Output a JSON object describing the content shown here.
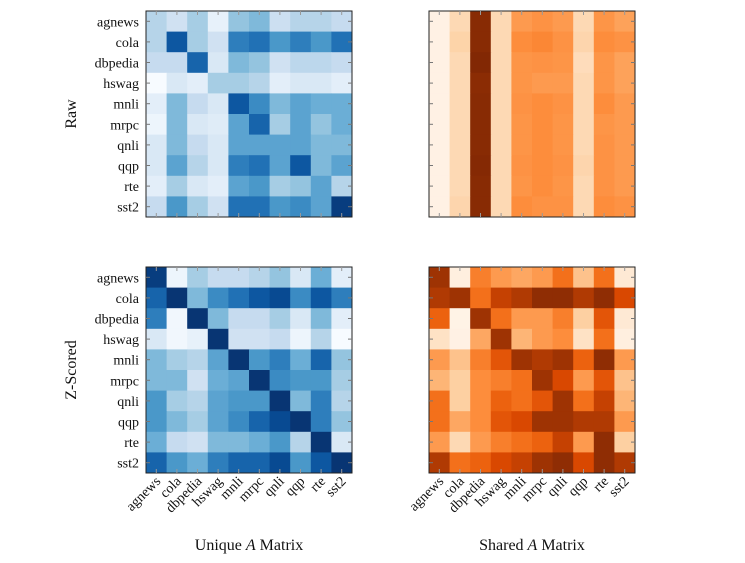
{
  "chart_data": [
    {
      "type": "heatmap",
      "row_label": "Raw",
      "col_title": "Unique A Matrix",
      "colormap": "Blues",
      "grid": false,
      "rows": [
        "agnews",
        "cola",
        "dbpedia",
        "hswag",
        "mnli",
        "mrpc",
        "qnli",
        "qqp",
        "rte",
        "sst2"
      ],
      "cols": [
        "agnews",
        "cola",
        "dbpedia",
        "hswag",
        "mnli",
        "mrpc",
        "qnli",
        "qqp",
        "rte",
        "sst2"
      ],
      "values": [
        [
          0.3,
          0.2,
          0.35,
          0.08,
          0.4,
          0.45,
          0.22,
          0.3,
          0.3,
          0.25
        ],
        [
          0.3,
          0.85,
          0.35,
          0.2,
          0.7,
          0.75,
          0.6,
          0.7,
          0.6,
          0.75
        ],
        [
          0.25,
          0.25,
          0.8,
          0.15,
          0.45,
          0.4,
          0.2,
          0.28,
          0.28,
          0.25
        ],
        [
          0,
          0.15,
          0.1,
          0.35,
          0.35,
          0.3,
          0.1,
          0.15,
          0.15,
          0.1
        ],
        [
          0.1,
          0.45,
          0.25,
          0.15,
          0.85,
          0.65,
          0.45,
          0.55,
          0.5,
          0.5
        ],
        [
          0.05,
          0.45,
          0.15,
          0.12,
          0.55,
          0.8,
          0.35,
          0.55,
          0.4,
          0.5
        ],
        [
          0.15,
          0.45,
          0.25,
          0.15,
          0.55,
          0.55,
          0.55,
          0.55,
          0.45,
          0.45
        ],
        [
          0.15,
          0.55,
          0.3,
          0.15,
          0.7,
          0.75,
          0.55,
          0.85,
          0.45,
          0.55
        ],
        [
          0.1,
          0.35,
          0.15,
          0.1,
          0.55,
          0.6,
          0.35,
          0.4,
          0.55,
          0.3
        ],
        [
          0.25,
          0.6,
          0.35,
          0.2,
          0.75,
          0.75,
          0.6,
          0.65,
          0.55,
          0.95
        ]
      ]
    },
    {
      "type": "heatmap",
      "row_label": "Raw",
      "col_title": "Shared A Matrix",
      "colormap": "Oranges",
      "grid": false,
      "rows": [
        "agnews",
        "cola",
        "dbpedia",
        "hswag",
        "mnli",
        "mrpc",
        "qnli",
        "qqp",
        "rte",
        "sst2"
      ],
      "cols": [
        "agnews",
        "cola",
        "dbpedia",
        "hswag",
        "mnli",
        "mrpc",
        "qnli",
        "qqp",
        "rte",
        "sst2"
      ],
      "values": [
        [
          0.03,
          0.2,
          0.97,
          0.2,
          0.45,
          0.48,
          0.45,
          0.2,
          0.47,
          0.42
        ],
        [
          0.03,
          0.23,
          0.97,
          0.2,
          0.5,
          0.52,
          0.48,
          0.22,
          0.5,
          0.48
        ],
        [
          0.03,
          0.2,
          0.99,
          0.2,
          0.47,
          0.48,
          0.47,
          0.18,
          0.47,
          0.42
        ],
        [
          0.03,
          0.2,
          0.96,
          0.2,
          0.47,
          0.45,
          0.45,
          0.2,
          0.47,
          0.42
        ],
        [
          0.03,
          0.2,
          0.97,
          0.2,
          0.48,
          0.5,
          0.48,
          0.2,
          0.5,
          0.45
        ],
        [
          0.03,
          0.2,
          0.97,
          0.2,
          0.47,
          0.5,
          0.47,
          0.2,
          0.47,
          0.45
        ],
        [
          0.03,
          0.2,
          0.97,
          0.2,
          0.47,
          0.5,
          0.47,
          0.2,
          0.48,
          0.45
        ],
        [
          0.03,
          0.2,
          0.98,
          0.2,
          0.48,
          0.5,
          0.48,
          0.22,
          0.48,
          0.45
        ],
        [
          0.03,
          0.2,
          0.97,
          0.2,
          0.47,
          0.5,
          0.47,
          0.2,
          0.48,
          0.45
        ],
        [
          0.03,
          0.22,
          0.97,
          0.2,
          0.5,
          0.48,
          0.48,
          0.2,
          0.5,
          0.48
        ]
      ]
    },
    {
      "type": "heatmap",
      "row_label": "Z-Scored",
      "col_title": "Unique A Matrix",
      "colormap": "Blues",
      "grid": false,
      "rows": [
        "agnews",
        "cola",
        "dbpedia",
        "hswag",
        "mnli",
        "mrpc",
        "qnli",
        "qqp",
        "rte",
        "sst2"
      ],
      "cols": [
        "agnews",
        "cola",
        "dbpedia",
        "hswag",
        "mnli",
        "mrpc",
        "qnli",
        "qqp",
        "rte",
        "sst2"
      ],
      "values": [
        [
          0.95,
          0.05,
          0.35,
          0.25,
          0.25,
          0.3,
          0.4,
          0.15,
          0.5,
          0.1
        ],
        [
          0.8,
          0.98,
          0.45,
          0.65,
          0.75,
          0.85,
          0.9,
          0.65,
          0.85,
          0.7
        ],
        [
          0.7,
          0.03,
          0.98,
          0.45,
          0.25,
          0.25,
          0.35,
          0.15,
          0.45,
          0.1
        ],
        [
          0.15,
          0.03,
          0.08,
          0.98,
          0.2,
          0.2,
          0.25,
          0.05,
          0.3,
          0
        ],
        [
          0.45,
          0.35,
          0.3,
          0.55,
          0.98,
          0.6,
          0.7,
          0.5,
          0.8,
          0.4
        ],
        [
          0.45,
          0.45,
          0.2,
          0.5,
          0.55,
          0.98,
          0.65,
          0.6,
          0.6,
          0.35
        ],
        [
          0.6,
          0.35,
          0.3,
          0.55,
          0.6,
          0.6,
          0.98,
          0.45,
          0.7,
          0.3
        ],
        [
          0.6,
          0.45,
          0.35,
          0.55,
          0.65,
          0.8,
          0.9,
          0.98,
          0.7,
          0.4
        ],
        [
          0.5,
          0.25,
          0.2,
          0.45,
          0.45,
          0.5,
          0.6,
          0.3,
          0.98,
          0.15
        ],
        [
          0.8,
          0.6,
          0.5,
          0.7,
          0.8,
          0.8,
          0.9,
          0.6,
          0.85,
          0.98
        ]
      ]
    },
    {
      "type": "heatmap",
      "row_label": "Z-Scored",
      "col_title": "Shared A Matrix",
      "colormap": "Oranges",
      "grid": false,
      "rows": [
        "agnews",
        "cola",
        "dbpedia",
        "hswag",
        "mnli",
        "mrpc",
        "qnli",
        "qqp",
        "rte",
        "sst2"
      ],
      "cols": [
        "agnews",
        "cola",
        "dbpedia",
        "hswag",
        "mnli",
        "mrpc",
        "qnli",
        "qqp",
        "rte",
        "sst2"
      ],
      "values": [
        [
          0.9,
          0.05,
          0.55,
          0.45,
          0.4,
          0.45,
          0.6,
          0.3,
          0.6,
          0.1
        ],
        [
          0.85,
          0.9,
          0.6,
          0.8,
          0.85,
          0.95,
          0.95,
          0.85,
          0.95,
          0.75
        ],
        [
          0.65,
          0.02,
          0.9,
          0.6,
          0.45,
          0.45,
          0.55,
          0.25,
          0.7,
          0.1
        ],
        [
          0.15,
          0.03,
          0.4,
          0.9,
          0.35,
          0.45,
          0.5,
          0.15,
          0.6,
          0.05
        ],
        [
          0.45,
          0.3,
          0.55,
          0.7,
          0.9,
          0.85,
          0.9,
          0.65,
          0.95,
          0.45
        ],
        [
          0.35,
          0.25,
          0.5,
          0.55,
          0.6,
          0.9,
          0.75,
          0.45,
          0.7,
          0.3
        ],
        [
          0.6,
          0.25,
          0.5,
          0.65,
          0.6,
          0.7,
          0.9,
          0.6,
          0.8,
          0.35
        ],
        [
          0.6,
          0.4,
          0.5,
          0.7,
          0.75,
          0.9,
          0.9,
          0.85,
          0.85,
          0.45
        ],
        [
          0.45,
          0.2,
          0.45,
          0.55,
          0.6,
          0.65,
          0.8,
          0.45,
          0.95,
          0.25
        ],
        [
          0.85,
          0.6,
          0.65,
          0.75,
          0.8,
          0.9,
          0.95,
          0.75,
          0.95,
          0.85
        ]
      ]
    }
  ],
  "labels": {
    "row_raw": "Raw",
    "row_z": "Z-Scored",
    "title_unique_pre": "Unique ",
    "title_shared_pre": "Shared ",
    "title_var": "A",
    "title_post": " Matrix"
  },
  "colors": {
    "blues": [
      "#f7fbff",
      "#deebf7",
      "#c6dbef",
      "#9ecae1",
      "#6baed6",
      "#4292c6",
      "#2171b5",
      "#08519c",
      "#08306b"
    ],
    "oranges": [
      "#fff5eb",
      "#fee6ce",
      "#fdd0a2",
      "#fdae6b",
      "#fd8d3c",
      "#f16913",
      "#d94801",
      "#a63603",
      "#7f2704"
    ]
  }
}
